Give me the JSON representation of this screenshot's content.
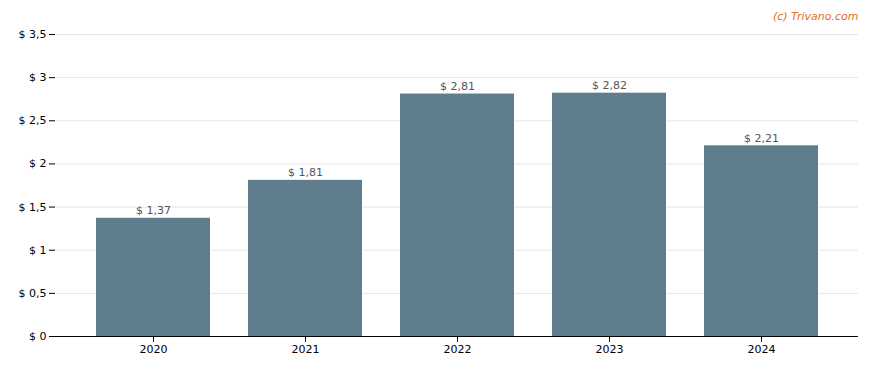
{
  "chart_data": {
    "type": "bar",
    "categories": [
      "2020",
      "2021",
      "2022",
      "2023",
      "2024"
    ],
    "values": [
      1.37,
      1.81,
      2.81,
      2.82,
      2.21
    ],
    "value_labels": [
      "$ 1,37",
      "$ 1,81",
      "$ 2,81",
      "$ 2,82",
      "$ 2,21"
    ],
    "data_labels": true,
    "color": "#5f7d8c",
    "ylim": [
      0,
      3.5
    ],
    "yticks": [
      {
        "value": 0,
        "label": "$ 0"
      },
      {
        "value": 0.5,
        "label": "$ 0,5"
      },
      {
        "value": 1.0,
        "label": "$ 1"
      },
      {
        "value": 1.5,
        "label": "$ 1,5"
      },
      {
        "value": 2.0,
        "label": "$ 2"
      },
      {
        "value": 2.5,
        "label": "$ 2,5"
      },
      {
        "value": 3.0,
        "label": "$ 3"
      },
      {
        "value": 3.5,
        "label": "$ 3,5"
      }
    ],
    "grid": true,
    "annotations": [
      {
        "text": "(c) Trivano.com",
        "color": "#e07020"
      }
    ]
  }
}
